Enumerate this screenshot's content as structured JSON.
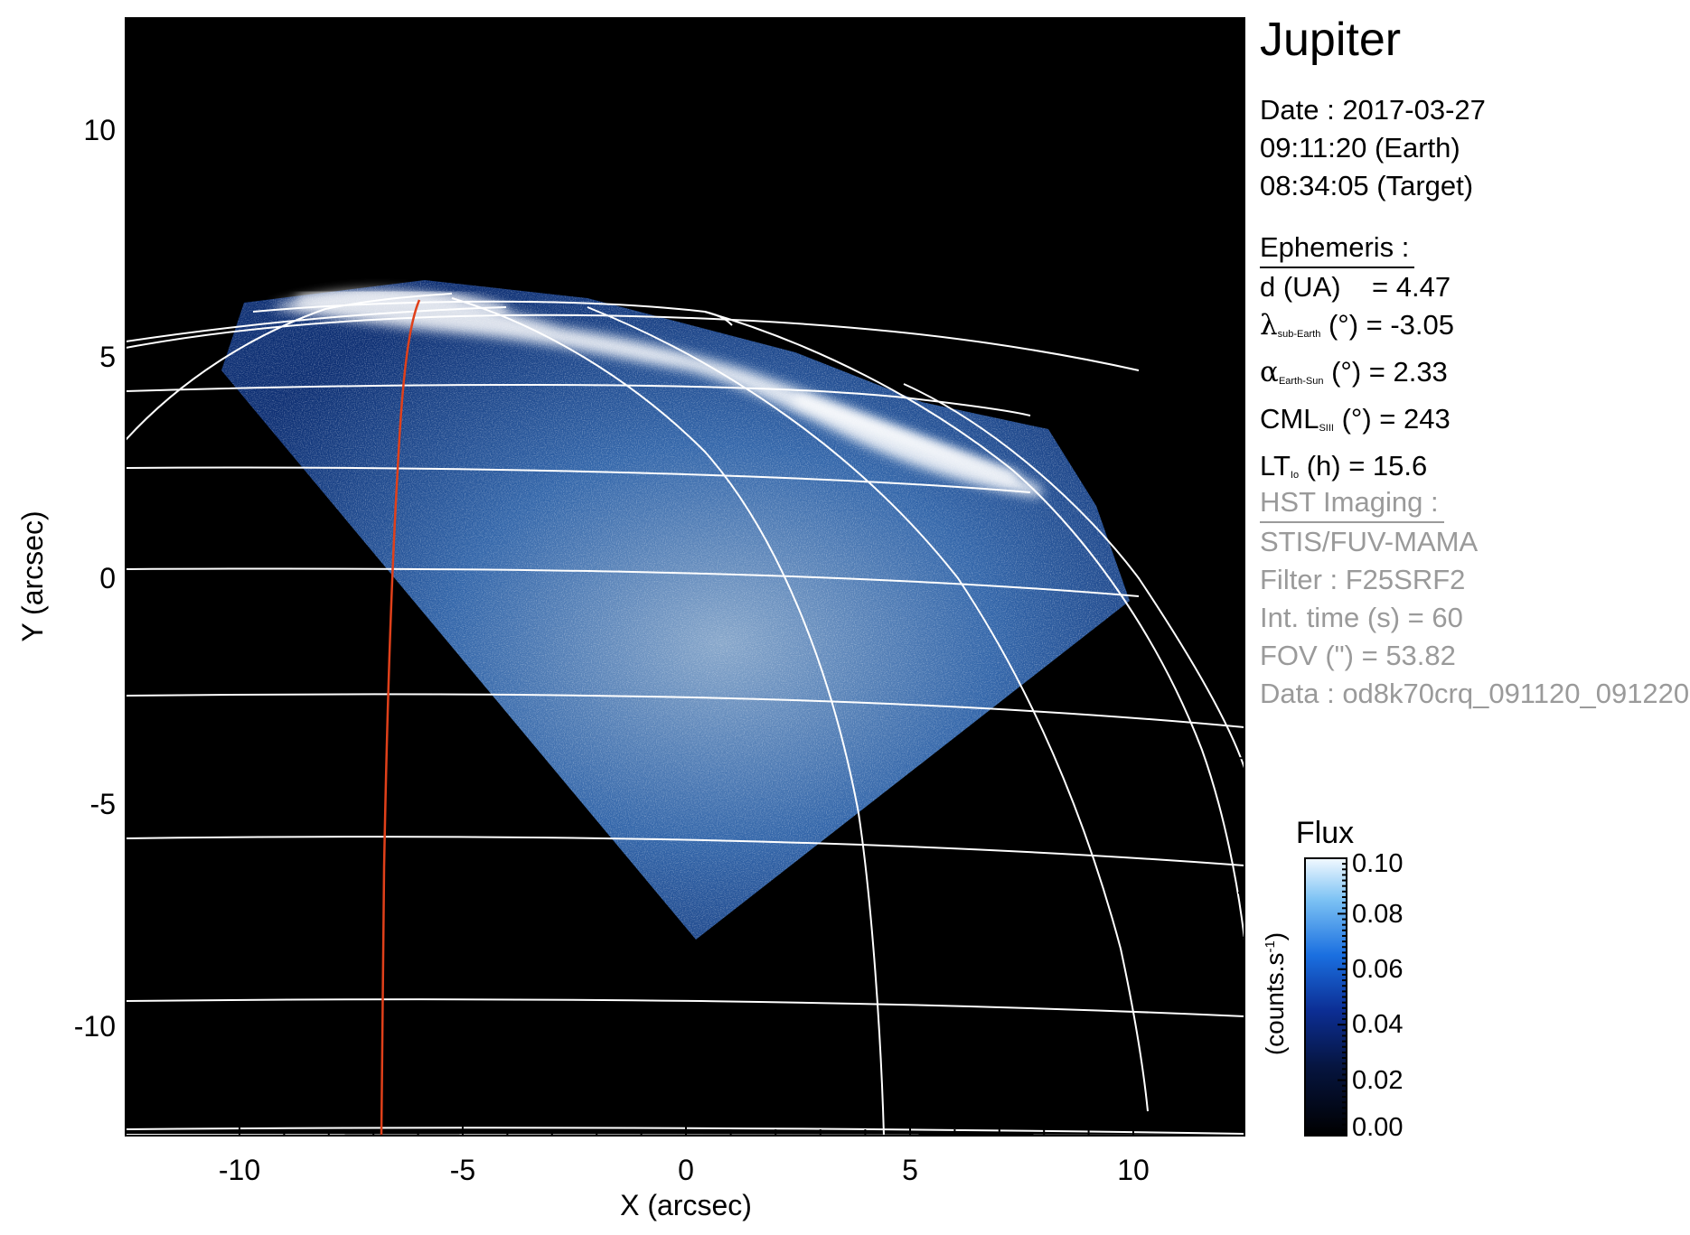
{
  "title": "Jupiter",
  "date": {
    "line1": "Date : 2017-03-27",
    "line2": "09:11:20 (Earth)",
    "line3": "08:34:05 (Target)"
  },
  "ephemeris": {
    "header": "Ephemeris :",
    "d_label": "d (UA)",
    "d_value": "= 4.47",
    "lat_symbol": "λ",
    "lat_sub": "sub-Earth",
    "lat_value": "(°) = -3.05",
    "alpha_symbol": "α",
    "alpha_sub": "Earth-Sun",
    "alpha_value": "(°) = 2.33",
    "cml_label": "CML",
    "cml_sub": "SIII",
    "cml_value": "(°) = 243",
    "lt_label": "LT",
    "lt_sub": "Io",
    "lt_value": "(h) = 15.6"
  },
  "hst": {
    "header": "HST Imaging :",
    "instrument": "STIS/FUV-MAMA",
    "filter": "Filter : F25SRF2",
    "inttime": "Int. time (s) = 60",
    "fov": "FOV (\") = 53.82",
    "data": "Data : od8k70crq_091120_091220"
  },
  "axes": {
    "xlabel": "X (arcsec)",
    "ylabel": "Y (arcsec)",
    "xticks": [
      "-10",
      "-5",
      "0",
      "5",
      "10"
    ],
    "yticks": [
      "10",
      "5",
      "0",
      "-5",
      "-10"
    ]
  },
  "colorbar": {
    "title": "Flux",
    "unit": "(counts.s",
    "unit_sup": "-1",
    "unit_end": ")",
    "ticks": [
      "0.10",
      "0.08",
      "0.06",
      "0.04",
      "0.02",
      "0.00"
    ]
  },
  "colors": {
    "background": "#000000",
    "grid": "#ffffff",
    "io_footprint": "#e0401a",
    "emission": "#2a6bd0"
  }
}
